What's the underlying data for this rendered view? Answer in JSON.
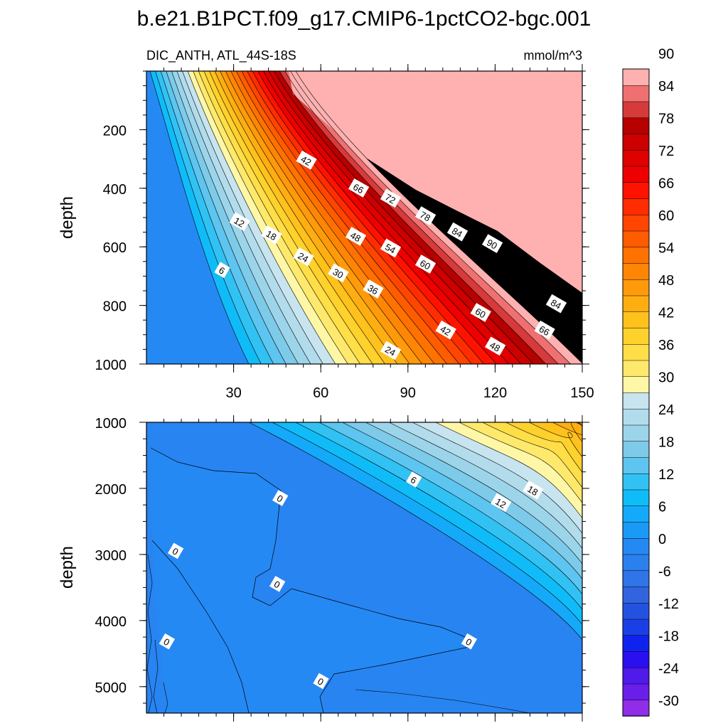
{
  "chart_data": {
    "type": "heatmap",
    "title": "b.e21.B1PCT.f09_g17.CMIP6-1pctCO2-bgc.001",
    "subtitle_left": "DIC_ANTH, ATL_44S-18S",
    "subtitle_right": "mmol/m^3",
    "x": {
      "range": [
        0,
        150
      ],
      "ticks": [
        30,
        60,
        90,
        120,
        150
      ],
      "tick_labels": [
        "30",
        "60",
        "90",
        "120",
        "150"
      ]
    },
    "upper_panel": {
      "ylabel": "depth",
      "yrange": [
        0,
        1000
      ],
      "yticks": [
        200,
        400,
        600,
        800,
        1000
      ],
      "ytick_labels": [
        "200",
        "400",
        "600",
        "800",
        "1000"
      ],
      "contour_labels": [
        {
          "text": "6",
          "x": 26,
          "y": 680
        },
        {
          "text": "12",
          "x": 32,
          "y": 515
        },
        {
          "text": "18",
          "x": 43,
          "y": 560
        },
        {
          "text": "24",
          "x": 54,
          "y": 635
        },
        {
          "text": "30",
          "x": 66,
          "y": 690
        },
        {
          "text": "36",
          "x": 78,
          "y": 745
        },
        {
          "text": "42",
          "x": 55,
          "y": 305
        },
        {
          "text": "48",
          "x": 72,
          "y": 565
        },
        {
          "text": "54",
          "x": 84,
          "y": 605
        },
        {
          "text": "60",
          "x": 96,
          "y": 660
        },
        {
          "text": "66",
          "x": 73,
          "y": 400
        },
        {
          "text": "72",
          "x": 84,
          "y": 435
        },
        {
          "text": "78",
          "x": 96,
          "y": 495
        },
        {
          "text": "84",
          "x": 107,
          "y": 550
        },
        {
          "text": "90",
          "x": 119,
          "y": 590
        },
        {
          "text": "60",
          "x": 115,
          "y": 825
        },
        {
          "text": "42",
          "x": 103,
          "y": 885
        },
        {
          "text": "48",
          "x": 120,
          "y": 940
        },
        {
          "text": "66",
          "x": 137,
          "y": 885
        },
        {
          "text": "84",
          "x": 141,
          "y": 795
        },
        {
          "text": "24",
          "x": 84,
          "y": 955
        }
      ]
    },
    "lower_panel": {
      "ylabel": "depth",
      "yrange": [
        1000,
        5400
      ],
      "yticks": [
        1000,
        2000,
        3000,
        4000,
        5000
      ],
      "ytick_labels": [
        "1000",
        "2000",
        "3000",
        "4000",
        "5000"
      ],
      "contour_labels": [
        {
          "text": "0",
          "x": 46,
          "y": 2150
        },
        {
          "text": "0",
          "x": 10,
          "y": 2950
        },
        {
          "text": "0",
          "x": 45,
          "y": 3450
        },
        {
          "text": "0",
          "x": 7,
          "y": 4320
        },
        {
          "text": "0",
          "x": 111,
          "y": 4320
        },
        {
          "text": "0",
          "x": 60,
          "y": 4920
        },
        {
          "text": "6",
          "x": 92,
          "y": 1870
        },
        {
          "text": "12",
          "x": 122,
          "y": 2220
        },
        {
          "text": "18",
          "x": 133,
          "y": 2030
        }
      ]
    },
    "colorbar": {
      "levels": [
        -33,
        -30,
        -27,
        -24,
        -21,
        -18,
        -15,
        -12,
        -9,
        -6,
        -3,
        0,
        3,
        6,
        9,
        12,
        15,
        18,
        21,
        24,
        27,
        30,
        33,
        36,
        39,
        42,
        45,
        48,
        51,
        54,
        57,
        60,
        63,
        66,
        69,
        72,
        75,
        78,
        81,
        84,
        87,
        90,
        93
      ],
      "tick_labels": [
        "-30",
        "-24",
        "-18",
        "-12",
        "-6",
        "0",
        "6",
        "12",
        "18",
        "24",
        "30",
        "36",
        "42",
        "48",
        "54",
        "60",
        "66",
        "72",
        "78",
        "84",
        "90"
      ],
      "colors": [
        "#8f2de8",
        "#6a1ee9",
        "#4f1aea",
        "#2a0ff0",
        "#1023ee",
        "#1a3fe6",
        "#2452e0",
        "#3264df",
        "#2f74e8",
        "#2b80ee",
        "#2589f4",
        "#1a9af7",
        "#14aaf9",
        "#10bcf8",
        "#31c2f3",
        "#5dc5ef",
        "#7ecae9",
        "#9cd5ea",
        "#b2dcec",
        "#c7e4ef",
        "#fff7a5",
        "#ffe96c",
        "#ffde48",
        "#ffd12c",
        "#ffc11c",
        "#ffae12",
        "#ff9a0a",
        "#ff8604",
        "#ff7200",
        "#ff5c00",
        "#ff4500",
        "#ff2d00",
        "#ff1300",
        "#ee0000",
        "#df0000",
        "#cc0000",
        "#b70000",
        "#d63a3a",
        "#ef7070",
        "#ffb1b1"
      ]
    }
  }
}
